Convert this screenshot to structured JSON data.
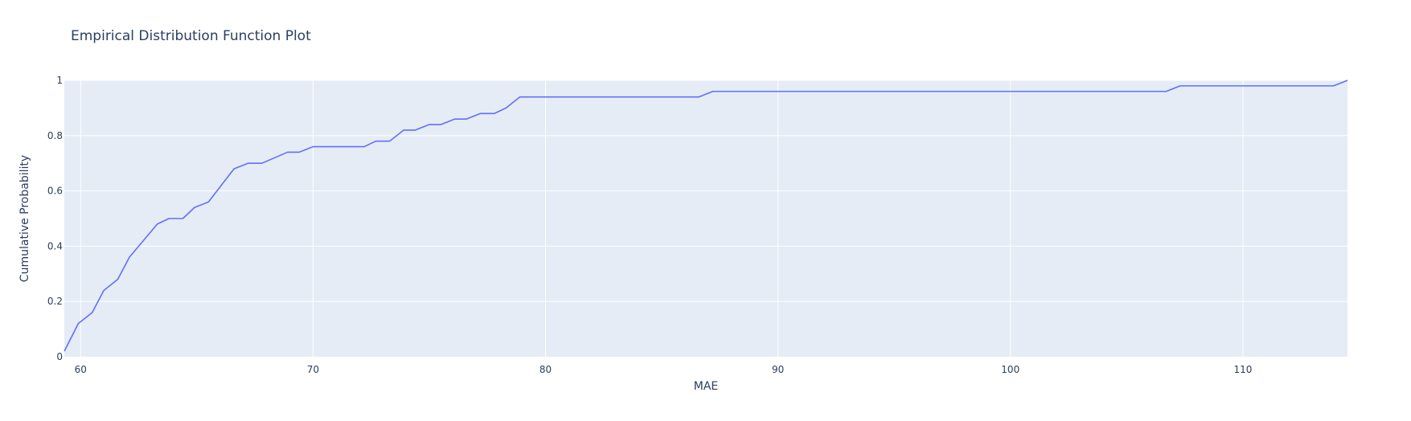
{
  "chart_data": {
    "type": "line",
    "title": "Empirical Distribution Function Plot",
    "xlabel": "MAE",
    "ylabel": "Cumulative Probability",
    "xlim": [
      59.3,
      114.5
    ],
    "ylim": [
      0,
      1
    ],
    "x_ticks": [
      60,
      70,
      80,
      90,
      100,
      110
    ],
    "y_ticks": [
      0,
      0.2,
      0.4,
      0.6,
      0.8,
      1
    ],
    "x_tick_labels": [
      "60",
      "70",
      "80",
      "90",
      "100",
      "110"
    ],
    "y_tick_labels": [
      "0",
      "0.2",
      "0.4",
      "0.6",
      "0.8",
      "1"
    ],
    "grid": true,
    "colors": {
      "plot_bg": "#e5ecf6",
      "line": "#636efa"
    },
    "series": [
      {
        "x": [
          59.3,
          59.9,
          60.5,
          61.0,
          61.6,
          62.1,
          63.3,
          63.8,
          64.4,
          64.9,
          65.5,
          66.6,
          67.2,
          67.8,
          68.9,
          69.4,
          70.0,
          72.2,
          72.7,
          73.3,
          73.9,
          74.4,
          75.0,
          75.5,
          76.1,
          76.6,
          77.2,
          77.8,
          78.3,
          78.9,
          86.6,
          87.2,
          106.7,
          107.3,
          113.9,
          114.5
        ],
        "y": [
          0.02,
          0.12,
          0.16,
          0.24,
          0.28,
          0.36,
          0.48,
          0.5,
          0.5,
          0.54,
          0.56,
          0.68,
          0.7,
          0.7,
          0.74,
          0.74,
          0.76,
          0.76,
          0.78,
          0.78,
          0.82,
          0.82,
          0.84,
          0.84,
          0.86,
          0.86,
          0.88,
          0.88,
          0.9,
          0.94,
          0.94,
          0.96,
          0.96,
          0.98,
          0.98,
          1.0
        ]
      }
    ]
  }
}
